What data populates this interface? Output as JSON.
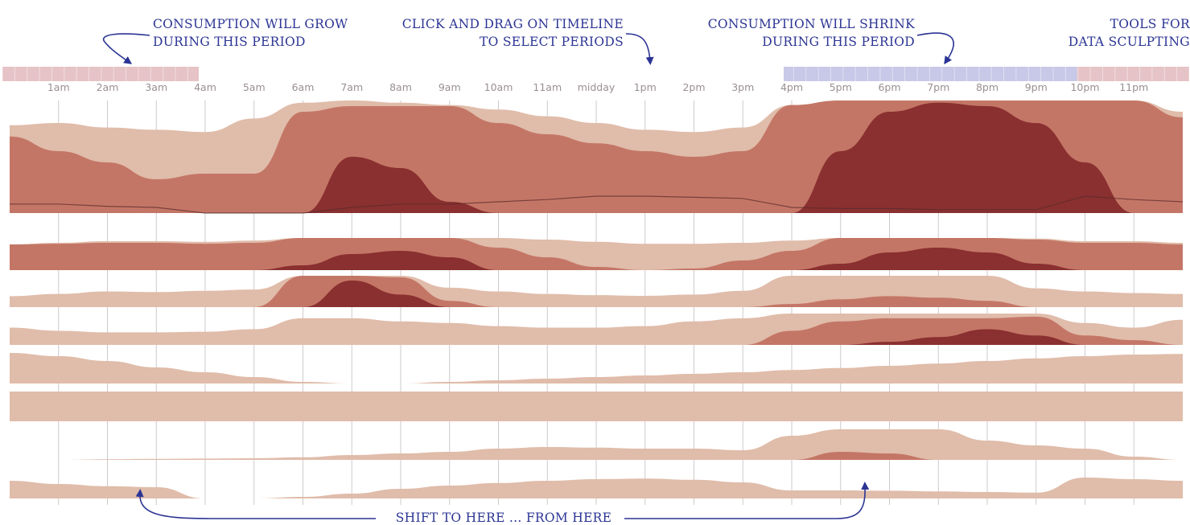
{
  "annotations": {
    "grow_line1": "CONSUMPTION WILL GROW",
    "grow_line2": "DURING THIS PERIOD",
    "drag_line1": "CLICK AND DRAG ON TIMELINE",
    "drag_line2": "TO SELECT PERIODS",
    "shrink_line1": "CONSUMPTION WILL SHRINK",
    "shrink_line2": "DURING THIS PERIOD",
    "tools_line1": "TOOLS FOR",
    "tools_line2": "DATA SCULPTING",
    "shift_label": "SHIFT TO HERE ... FROM HERE"
  },
  "timeline": {
    "hours": [
      "1am",
      "2am",
      "3am",
      "4am",
      "5am",
      "6am",
      "7am",
      "8am",
      "9am",
      "10am",
      "11am",
      "midday",
      "1pm",
      "2pm",
      "3pm",
      "4pm",
      "5pm",
      "6pm",
      "7pm",
      "8pm",
      "9pm",
      "10pm",
      "11pm"
    ],
    "grow_selection_hours": [
      0,
      4
    ],
    "shrink_selection_hours": [
      16,
      22
    ]
  },
  "colors": {
    "light": "#e0bcaa",
    "mid": "#c47666",
    "dark": "#8a3030",
    "grow_band": "#e6c3c6",
    "shrink_band": "#c8c8e8",
    "annotation": "#2b3494"
  },
  "chart_data": {
    "type": "area",
    "x": [
      0,
      1,
      2,
      3,
      4,
      5,
      6,
      7,
      8,
      9,
      10,
      11,
      12,
      13,
      14,
      15,
      16,
      17,
      18,
      19,
      20,
      21,
      22,
      23,
      24
    ],
    "series": [
      {
        "values": [
          0.78,
          0.8,
          0.76,
          0.74,
          0.72,
          0.84,
          0.98,
          1,
          0.98,
          0.96,
          0.92,
          0.86,
          0.8,
          0.74,
          0.72,
          0.76,
          0.96,
          1,
          1,
          1,
          1,
          1,
          1,
          1,
          0.9
        ],
        "layers": [
          0.68,
          0.55,
          0.45,
          0.3,
          0.35,
          0.35,
          0.9,
          0.95,
          0.95,
          0.95,
          0.8,
          0.7,
          0.62,
          0.55,
          0.5,
          0.55,
          0.96,
          1,
          1,
          1,
          1,
          1,
          1,
          1,
          0.85
        ],
        "layers2": [
          0,
          0,
          0,
          0,
          0,
          0,
          0,
          0.5,
          0.4,
          0.1,
          0,
          0,
          0,
          0,
          0,
          0,
          0,
          0.55,
          0.9,
          0.98,
          0.95,
          0.8,
          0.45,
          0,
          0
        ]
      },
      {
        "values": [
          0.8,
          0.85,
          0.9,
          0.9,
          0.88,
          0.92,
          1,
          1,
          1,
          1,
          1,
          0.95,
          0.88,
          0.82,
          0.82,
          0.85,
          0.92,
          1,
          1,
          1,
          1,
          0.98,
          0.9,
          0.9,
          0.85
        ],
        "layers": [
          0.8,
          0.82,
          0.85,
          0.85,
          0.82,
          0.85,
          1,
          1,
          1,
          1,
          0.7,
          0.4,
          0.1,
          0,
          0.05,
          0.3,
          0.6,
          1,
          1,
          1,
          1,
          0.95,
          0.85,
          0.85,
          0.8
        ],
        "layers2": [
          0,
          0,
          0,
          0,
          0,
          0,
          0.15,
          0.5,
          0.6,
          0.4,
          0,
          0,
          0,
          0,
          0,
          0,
          0,
          0.2,
          0.55,
          0.7,
          0.55,
          0.2,
          0,
          0,
          0
        ]
      },
      {
        "values": [
          0.35,
          0.42,
          0.5,
          0.48,
          0.52,
          0.56,
          1,
          1,
          1,
          0.62,
          0.5,
          0.42,
          0.38,
          0.36,
          0.4,
          0.52,
          1,
          1,
          1,
          1,
          1,
          0.6,
          0.5,
          0.45,
          0.42
        ],
        "layers": [
          0,
          0,
          0,
          0,
          0,
          0,
          1,
          1,
          0.95,
          0.2,
          0,
          0,
          0,
          0,
          0,
          0,
          0.1,
          0.25,
          0.35,
          0.3,
          0.2,
          0,
          0,
          0,
          0
        ],
        "layers2": [
          0,
          0,
          0,
          0,
          0,
          0,
          0,
          0.85,
          0.4,
          0,
          0,
          0,
          0,
          0,
          0,
          0,
          0,
          0,
          0,
          0,
          0,
          0,
          0,
          0,
          0
        ]
      },
      {
        "values": [
          0.55,
          0.45,
          0.4,
          0.4,
          0.42,
          0.5,
          0.85,
          0.85,
          0.75,
          0.7,
          0.6,
          0.55,
          0.55,
          0.6,
          0.75,
          0.85,
          1,
          1,
          1,
          1,
          1,
          1,
          0.7,
          0.55,
          0.8
        ],
        "layers": [
          0,
          0,
          0,
          0,
          0,
          0,
          0,
          0,
          0,
          0,
          0,
          0,
          0,
          0,
          0,
          0,
          0.45,
          0.75,
          0.85,
          0.85,
          0.85,
          0.9,
          0.3,
          0.15,
          0
        ],
        "layers2": [
          0,
          0,
          0,
          0,
          0,
          0,
          0,
          0,
          0,
          0,
          0,
          0,
          0,
          0,
          0,
          0,
          0,
          0,
          0.1,
          0.25,
          0.5,
          0.3,
          0,
          0,
          0
        ]
      },
      {
        "values": [
          0.95,
          0.85,
          0.7,
          0.5,
          0.35,
          0.2,
          0.05,
          0,
          0,
          0.05,
          0.1,
          0.15,
          0.2,
          0.25,
          0.3,
          0.35,
          0.42,
          0.48,
          0.55,
          0.62,
          0.7,
          0.78,
          0.85,
          0.9,
          0.92
        ],
        "layers": [
          0,
          0,
          0,
          0,
          0,
          0,
          0,
          0,
          0,
          0,
          0,
          0,
          0,
          0,
          0,
          0,
          0,
          0,
          0,
          0,
          0,
          0,
          0,
          0,
          0
        ],
        "layers2": [
          0,
          0,
          0,
          0,
          0,
          0,
          0,
          0,
          0,
          0,
          0,
          0,
          0,
          0,
          0,
          0,
          0,
          0,
          0,
          0,
          0,
          0,
          0,
          0,
          0
        ]
      },
      {
        "values": [
          0.95,
          0.95,
          0.95,
          0.95,
          0.95,
          0.95,
          0.95,
          0.95,
          0.95,
          0.95,
          0.95,
          0.95,
          0.95,
          0.95,
          0.95,
          0.95,
          0.95,
          0.95,
          0.95,
          0.95,
          0.95,
          0.95,
          0.95,
          0.95,
          0.95
        ],
        "layers": [
          0,
          0,
          0,
          0,
          0,
          0,
          0,
          0,
          0,
          0,
          0,
          0,
          0,
          0,
          0,
          0,
          0,
          0,
          0,
          0,
          0,
          0,
          0,
          0,
          0
        ],
        "layers2": [
          0,
          0,
          0,
          0,
          0,
          0,
          0,
          0,
          0,
          0,
          0,
          0,
          0,
          0,
          0,
          0,
          0,
          0,
          0,
          0,
          0,
          0,
          0,
          0,
          0
        ]
      },
      {
        "values": [
          0,
          0,
          0.02,
          0.03,
          0.04,
          0.05,
          0.08,
          0.15,
          0.2,
          0.25,
          0.35,
          0.4,
          0.38,
          0.35,
          0.35,
          0.3,
          0.75,
          0.95,
          0.95,
          0.95,
          0.6,
          0.45,
          0.35,
          0.1,
          0
        ],
        "layers": [
          0,
          0,
          0,
          0,
          0,
          0,
          0,
          0,
          0,
          0,
          0,
          0,
          0,
          0,
          0,
          0,
          0,
          0.25,
          0.2,
          0,
          0,
          0,
          0,
          0,
          0
        ],
        "layers2": [
          0,
          0,
          0,
          0,
          0,
          0,
          0,
          0,
          0,
          0,
          0,
          0,
          0,
          0,
          0,
          0,
          0,
          0,
          0,
          0,
          0,
          0,
          0,
          0,
          0
        ]
      },
      {
        "values": [
          0.55,
          0.45,
          0.38,
          0.35,
          0,
          0,
          0.05,
          0.15,
          0.3,
          0.4,
          0.48,
          0.55,
          0.6,
          0.62,
          0.58,
          0.5,
          0.25,
          0.25,
          0.24,
          0.22,
          0.2,
          0.18,
          0.65,
          0.6,
          0.55
        ],
        "layers": [
          0,
          0,
          0,
          0,
          0,
          0,
          0,
          0,
          0,
          0,
          0,
          0,
          0,
          0,
          0,
          0,
          0,
          0,
          0,
          0,
          0,
          0,
          0,
          0,
          0
        ],
        "layers2": [
          0,
          0,
          0,
          0,
          0,
          0,
          0,
          0,
          0,
          0,
          0,
          0,
          0,
          0,
          0,
          0,
          0,
          0,
          0,
          0,
          0,
          0,
          0,
          0,
          0
        ]
      }
    ]
  }
}
